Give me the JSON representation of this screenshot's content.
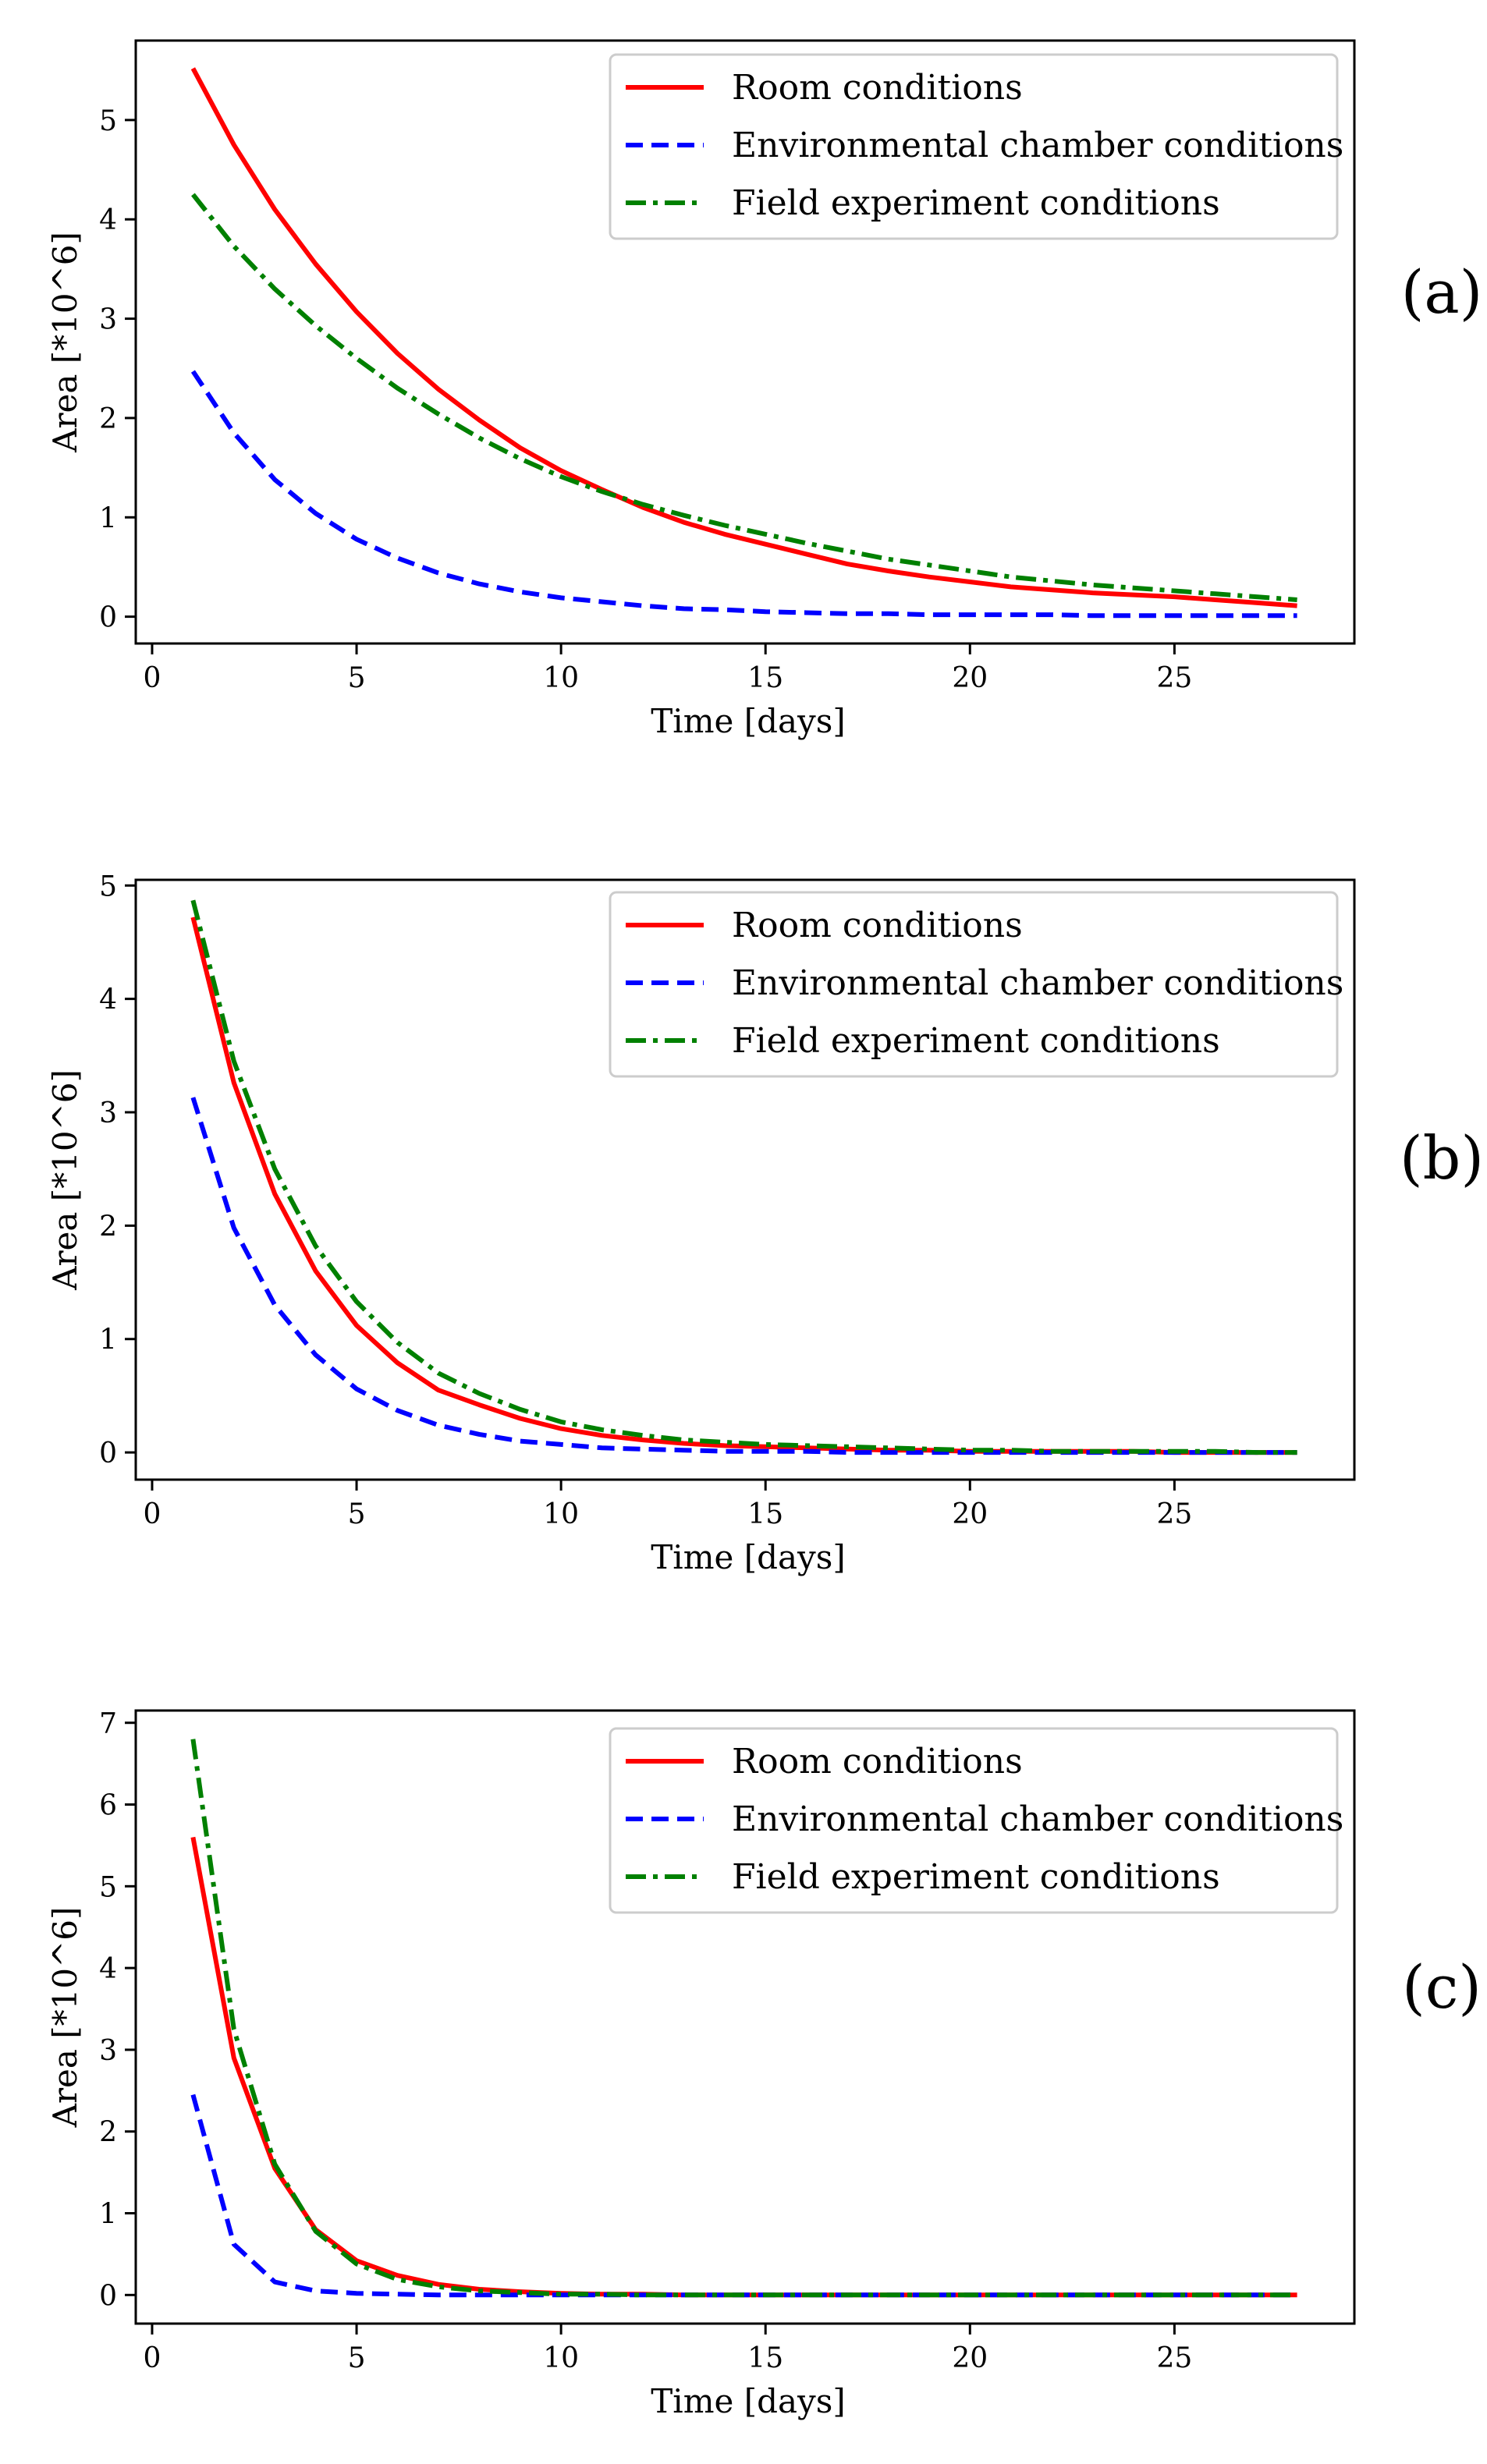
{
  "chart_data": [
    {
      "type": "line",
      "panel_label": "(a)",
      "xlabel": "Time [days]",
      "ylabel": "Area [*10^6]",
      "xlim": [
        -0.4,
        29.4
      ],
      "ylim": [
        -0.27,
        5.8
      ],
      "xticks": [
        0,
        5,
        10,
        15,
        20,
        25
      ],
      "yticks": [
        0,
        1,
        2,
        3,
        4,
        5
      ],
      "legend_position": "top-right",
      "series": [
        {
          "name": "Room conditions",
          "color": "#ff0000",
          "style": "solid",
          "x": [
            1,
            2,
            3,
            4,
            5,
            6,
            7,
            8,
            9,
            10,
            11,
            12,
            13,
            14,
            15,
            16,
            17,
            18,
            19,
            20,
            21,
            22,
            23,
            24,
            25,
            26,
            27,
            28
          ],
          "y": [
            5.52,
            4.75,
            4.1,
            3.55,
            3.07,
            2.65,
            2.29,
            1.98,
            1.7,
            1.47,
            1.28,
            1.1,
            0.95,
            0.83,
            0.73,
            0.63,
            0.53,
            0.46,
            0.4,
            0.35,
            0.3,
            0.27,
            0.24,
            0.22,
            0.2,
            0.17,
            0.14,
            0.11
          ]
        },
        {
          "name": "Environmental chamber conditions",
          "color": "#0000ff",
          "style": "dashed",
          "x": [
            1,
            2,
            3,
            4,
            5,
            6,
            7,
            8,
            9,
            10,
            11,
            12,
            13,
            14,
            15,
            16,
            17,
            18,
            19,
            20,
            21,
            22,
            23,
            24,
            25,
            26,
            27,
            28
          ],
          "y": [
            2.47,
            1.85,
            1.38,
            1.04,
            0.78,
            0.59,
            0.44,
            0.33,
            0.25,
            0.19,
            0.15,
            0.11,
            0.08,
            0.07,
            0.05,
            0.04,
            0.03,
            0.03,
            0.02,
            0.02,
            0.02,
            0.02,
            0.01,
            0.01,
            0.01,
            0.01,
            0.01,
            0.01
          ]
        },
        {
          "name": "Field experiment conditions",
          "color": "#008000",
          "style": "dashdot",
          "x": [
            1,
            2,
            3,
            4,
            5,
            6,
            7,
            8,
            9,
            10,
            11,
            12,
            13,
            14,
            15,
            16,
            17,
            18,
            19,
            20,
            21,
            22,
            23,
            24,
            25,
            26,
            27,
            28
          ],
          "y": [
            4.25,
            3.73,
            3.3,
            2.93,
            2.6,
            2.3,
            2.04,
            1.8,
            1.59,
            1.41,
            1.26,
            1.13,
            1.02,
            0.92,
            0.83,
            0.74,
            0.66,
            0.58,
            0.52,
            0.46,
            0.4,
            0.36,
            0.32,
            0.29,
            0.26,
            0.23,
            0.2,
            0.17
          ]
        }
      ]
    },
    {
      "type": "line",
      "panel_label": "(b)",
      "xlabel": "Time [days]",
      "ylabel": "Area [*10^6]",
      "xlim": [
        -0.4,
        29.4
      ],
      "ylim": [
        -0.24,
        5.05
      ],
      "xticks": [
        0,
        5,
        10,
        15,
        20,
        25
      ],
      "yticks": [
        0,
        1,
        2,
        3,
        4,
        5
      ],
      "legend_position": "top-right",
      "series": [
        {
          "name": "Room conditions",
          "color": "#ff0000",
          "style": "solid",
          "x": [
            1,
            2,
            3,
            4,
            5,
            6,
            7,
            8,
            9,
            10,
            11,
            12,
            13,
            14,
            15,
            16,
            17,
            18,
            19,
            20,
            21,
            22,
            23,
            24,
            25,
            26,
            27,
            28
          ],
          "y": [
            4.72,
            3.26,
            2.28,
            1.6,
            1.12,
            0.79,
            0.55,
            0.42,
            0.3,
            0.21,
            0.15,
            0.11,
            0.08,
            0.06,
            0.05,
            0.04,
            0.03,
            0.02,
            0.02,
            0.01,
            0.01,
            0.01,
            0.01,
            0.01,
            0.0,
            0.0,
            0.0,
            0.0
          ]
        },
        {
          "name": "Environmental chamber conditions",
          "color": "#0000ff",
          "style": "dashed",
          "x": [
            1,
            2,
            3,
            4,
            5,
            6,
            7,
            8,
            9,
            10,
            11,
            12,
            13,
            14,
            15,
            16,
            17,
            18,
            19,
            20,
            21,
            22,
            23,
            24,
            25,
            26,
            27,
            28
          ],
          "y": [
            3.13,
            1.98,
            1.3,
            0.86,
            0.56,
            0.37,
            0.24,
            0.16,
            0.1,
            0.07,
            0.04,
            0.03,
            0.02,
            0.01,
            0.01,
            0.01,
            0.0,
            0.0,
            0.0,
            0.0,
            0.0,
            0.0,
            0.0,
            0.0,
            0.0,
            0.0,
            0.0,
            0.0
          ]
        },
        {
          "name": "Field experiment conditions",
          "color": "#008000",
          "style": "dashdot",
          "x": [
            1,
            2,
            3,
            4,
            5,
            6,
            7,
            8,
            9,
            10,
            11,
            12,
            13,
            14,
            15,
            16,
            17,
            18,
            19,
            20,
            21,
            22,
            23,
            24,
            25,
            26,
            27,
            28
          ],
          "y": [
            4.87,
            3.45,
            2.5,
            1.82,
            1.33,
            0.97,
            0.7,
            0.52,
            0.38,
            0.27,
            0.2,
            0.15,
            0.11,
            0.09,
            0.07,
            0.06,
            0.05,
            0.04,
            0.03,
            0.02,
            0.02,
            0.01,
            0.01,
            0.01,
            0.01,
            0.01,
            0.0,
            0.0
          ]
        }
      ]
    },
    {
      "type": "line",
      "panel_label": "(c)",
      "xlabel": "Time [days]",
      "ylabel": "Area [*10^6]",
      "xlim": [
        -0.4,
        29.4
      ],
      "ylim": [
        -0.35,
        7.15
      ],
      "xticks": [
        0,
        5,
        10,
        15,
        20,
        25
      ],
      "yticks": [
        0,
        1,
        2,
        3,
        4,
        5,
        6,
        7
      ],
      "legend_position": "top-right",
      "series": [
        {
          "name": "Room conditions",
          "color": "#ff0000",
          "style": "solid",
          "x": [
            1,
            2,
            3,
            4,
            5,
            6,
            7,
            8,
            9,
            10,
            11,
            12,
            13,
            14,
            15,
            16,
            17,
            18,
            19,
            20,
            21,
            22,
            23,
            24,
            25,
            26,
            27,
            28
          ],
          "y": [
            5.6,
            2.9,
            1.55,
            0.8,
            0.42,
            0.24,
            0.13,
            0.07,
            0.04,
            0.02,
            0.01,
            0.01,
            0.0,
            0.0,
            0.0,
            0.0,
            0.0,
            0.0,
            0.0,
            0.0,
            0.0,
            0.0,
            0.0,
            0.0,
            0.0,
            0.0,
            0.0,
            0.0
          ]
        },
        {
          "name": "Environmental chamber conditions",
          "color": "#0000ff",
          "style": "dashed",
          "x": [
            1,
            2,
            3,
            4,
            5,
            6,
            7,
            8,
            9,
            10,
            11,
            12,
            13,
            14,
            15,
            16,
            17,
            18,
            19,
            20,
            21,
            22,
            23,
            24,
            25,
            26,
            27,
            28
          ],
          "y": [
            2.45,
            0.62,
            0.16,
            0.05,
            0.02,
            0.01,
            0.0,
            0.0,
            0.0,
            0.0,
            0.0,
            0.0,
            0.0,
            0.0,
            0.0,
            0.0,
            0.0,
            0.0,
            0.0,
            0.0,
            0.0,
            0.0,
            0.0,
            0.0,
            0.0,
            0.0,
            0.0,
            0.0
          ]
        },
        {
          "name": "Field experiment conditions",
          "color": "#008000",
          "style": "dashdot",
          "x": [
            1,
            2,
            3,
            4,
            5,
            6,
            7,
            8,
            9,
            10,
            11,
            12,
            13,
            14,
            15,
            16,
            17,
            18,
            19,
            20,
            21,
            22,
            23,
            24,
            25,
            26,
            27,
            28
          ],
          "y": [
            6.8,
            3.25,
            1.6,
            0.78,
            0.38,
            0.19,
            0.1,
            0.05,
            0.03,
            0.01,
            0.01,
            0.0,
            0.0,
            0.0,
            0.0,
            0.0,
            0.0,
            0.0,
            0.0,
            0.0,
            0.0,
            0.0,
            0.0,
            0.0,
            0.0,
            0.0,
            0.0,
            0.0
          ]
        }
      ]
    }
  ]
}
